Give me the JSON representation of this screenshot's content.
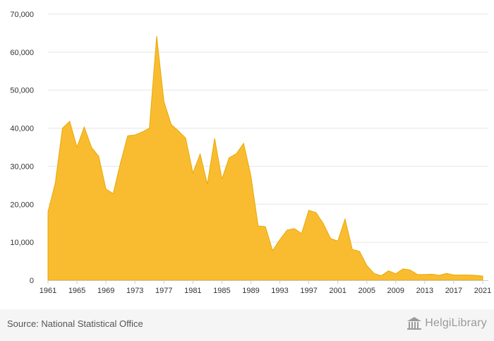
{
  "chart_data": {
    "type": "area",
    "title": "",
    "xlabel": "",
    "ylabel": "",
    "x": [
      1961,
      1962,
      1963,
      1964,
      1965,
      1966,
      1967,
      1968,
      1969,
      1970,
      1971,
      1972,
      1973,
      1974,
      1975,
      1976,
      1977,
      1978,
      1979,
      1980,
      1981,
      1982,
      1983,
      1984,
      1985,
      1986,
      1987,
      1988,
      1989,
      1990,
      1991,
      1992,
      1993,
      1994,
      1995,
      1996,
      1997,
      1998,
      1999,
      2000,
      2001,
      2002,
      2003,
      2004,
      2005,
      2006,
      2007,
      2008,
      2009,
      2010,
      2011,
      2012,
      2013,
      2014,
      2015,
      2016,
      2017,
      2018,
      2019,
      2020,
      2021
    ],
    "values": [
      18000,
      25500,
      40000,
      41800,
      35000,
      40300,
      35000,
      32600,
      24000,
      22800,
      30800,
      38000,
      38200,
      39000,
      40000,
      64200,
      47000,
      41000,
      39300,
      37400,
      28200,
      33200,
      25300,
      37300,
      26600,
      32200,
      33300,
      36000,
      27500,
      14300,
      14100,
      7800,
      10700,
      13200,
      13600,
      12300,
      18400,
      17800,
      14900,
      11000,
      10300,
      16100,
      8100,
      7600,
      3900,
      1800,
      1200,
      2500,
      1700,
      3000,
      2700,
      1500,
      1500,
      1600,
      1300,
      1800,
      1400,
      1400,
      1400,
      1300,
      1100
    ],
    "xticks": [
      "1961",
      "1965",
      "1969",
      "1973",
      "1977",
      "1981",
      "1985",
      "1989",
      "1993",
      "1997",
      "2001",
      "2005",
      "2009",
      "2013",
      "2017",
      "2021"
    ],
    "yticks": [
      "0",
      "10,000",
      "20,000",
      "30,000",
      "40,000",
      "50,000",
      "60,000",
      "70,000"
    ],
    "ylim": [
      0,
      70000
    ],
    "xlim": [
      1961,
      2021
    ],
    "grid": true,
    "legend": "none",
    "colors": {
      "fill": "#F9BC31",
      "stroke": "#E8A800",
      "grid": "#E6E6E6",
      "axis": "#CCCCCC"
    }
  },
  "footer": {
    "source": "Source: National Statistical Office",
    "brand": "HelgiLibrary",
    "brand_icon": "library-building-icon"
  }
}
